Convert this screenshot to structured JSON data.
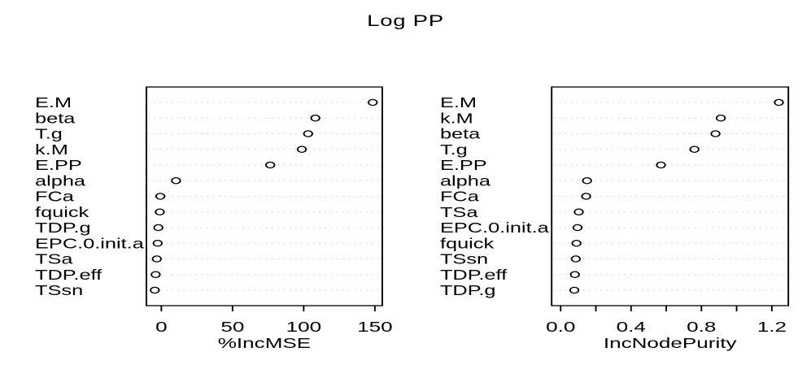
{
  "title": "Log PP",
  "colors": {
    "background": "#ffffff",
    "text": "#000000",
    "box_border": "#000000",
    "gridline": "#c8c8c8",
    "point_stroke": "#000000",
    "point_fill": "#ffffff"
  },
  "chart_data": [
    {
      "type": "scatter",
      "subtype": "dotchart",
      "panel": "left",
      "xlabel": "%IncMSE",
      "ylabel": "",
      "grid": "dotted-horizontal",
      "legend": "none",
      "categories": [
        "E.M",
        "beta",
        "T.g",
        "k.M",
        "E.PP",
        "alpha",
        "FCa",
        "fquick",
        "TDP.g",
        "EPC.0.init.a",
        "TSa",
        "TDP.eff",
        "TSsn"
      ],
      "values": [
        148.5,
        108.2,
        103.1,
        98.7,
        76.5,
        10.3,
        -0.7,
        -1.1,
        -2.1,
        -2.6,
        -3.2,
        -4.0,
        -4.6
      ],
      "xlim": [
        -10.5,
        155.2
      ],
      "ticks": [
        {
          "v": 0,
          "label": "0"
        },
        {
          "v": 50,
          "label": "50"
        },
        {
          "v": 100,
          "label": "100"
        },
        {
          "v": 150,
          "label": "150"
        }
      ]
    },
    {
      "type": "scatter",
      "subtype": "dotchart",
      "panel": "right",
      "xlabel": "IncNodePurity",
      "ylabel": "",
      "grid": "dotted-horizontal",
      "legend": "none",
      "categories": [
        "E.M",
        "k.M",
        "beta",
        "T.g",
        "E.PP",
        "alpha",
        "FCa",
        "TSa",
        "EPC.0.init.a",
        "fquick",
        "TSsn",
        "TDP.eff",
        "TDP.g"
      ],
      "values": [
        1.24,
        0.91,
        0.88,
        0.76,
        0.57,
        0.15,
        0.145,
        0.103,
        0.096,
        0.09,
        0.086,
        0.081,
        0.078
      ],
      "xlim": [
        -0.051,
        1.294
      ],
      "ticks": [
        {
          "v": 0.0,
          "label": "0.0"
        },
        {
          "v": 0.2,
          "label": ""
        },
        {
          "v": 0.4,
          "label": "0.4"
        },
        {
          "v": 0.6,
          "label": ""
        },
        {
          "v": 0.8,
          "label": "0.8"
        },
        {
          "v": 1.0,
          "label": ""
        },
        {
          "v": 1.2,
          "label": "1.2"
        }
      ]
    }
  ]
}
